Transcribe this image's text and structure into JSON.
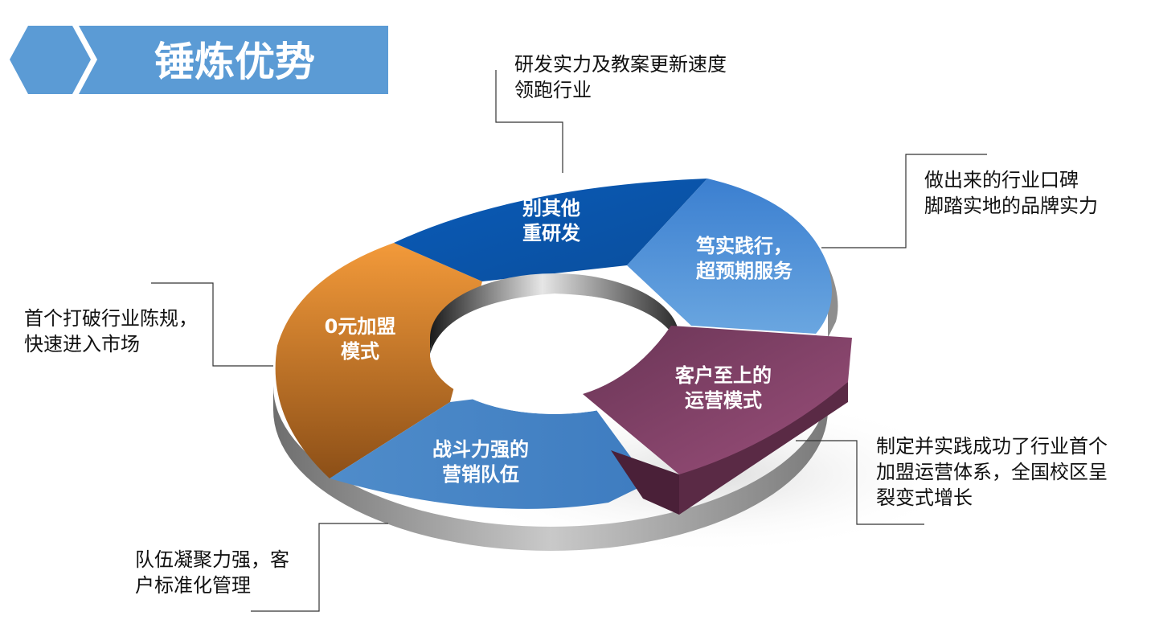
{
  "title": "锤炼优势",
  "colors": {
    "banner": "#5b9bd5",
    "segment_orange": "#e78b2e",
    "segment_dark_blue": "#0b5ab4",
    "segment_mid_blue": "#3f86d4",
    "segment_light_blue": "#5896d2",
    "segment_purple": "#86456a",
    "ring_side": "#9a9a9a"
  },
  "segments": [
    {
      "id": "orange",
      "line1": "0元加盟",
      "line2": "模式"
    },
    {
      "id": "dark-blue",
      "line1": "别其他",
      "line2": "重研发"
    },
    {
      "id": "mid-blue",
      "line1": "笃实践行，",
      "line2": "超预期服务"
    },
    {
      "id": "purple",
      "line1": "客户至上的",
      "line2": "运营模式"
    },
    {
      "id": "light-blue",
      "line1": "战斗力强的",
      "line2": "营销队伍"
    }
  ],
  "annotations": {
    "top": [
      "研发实力及教案更新速度",
      "领跑行业"
    ],
    "right_top": [
      "做出来的行业口碑",
      "脚踏实地的品牌实力"
    ],
    "left": [
      "首个打破行业陈规，",
      "快速进入市场"
    ],
    "right_bottom": [
      "制定并实践成功了行业首个",
      "加盟运营体系，全国校区呈",
      "裂变式增长"
    ],
    "bottom": [
      "队伍凝聚力强，客",
      "户标准化管理"
    ]
  }
}
